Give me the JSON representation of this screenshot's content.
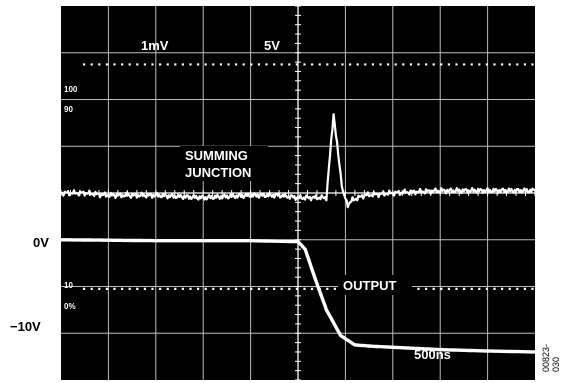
{
  "chart_data": {
    "type": "line",
    "title": "",
    "grid": true,
    "x_divisions": 10,
    "y_divisions": 8,
    "scale_labels": {
      "ch1": "1mV",
      "ch2": "5V",
      "time": "500ns"
    },
    "reference_labels": {
      "top_pct": "100",
      "upper": "90",
      "lower": "10",
      "bottom_pct": "0%"
    },
    "level_labels": {
      "zero": "0V",
      "minus_ten": "−10V"
    },
    "series": [
      {
        "name": "SUMMING\nJUNCTION",
        "name_lines": [
          "SUMMING",
          "JUNCTION"
        ],
        "x_div": [
          0,
          0.5,
          1,
          2,
          3,
          4,
          4.6,
          5.0,
          5.6,
          5.75,
          5.85,
          5.95,
          6.05,
          6.15,
          6.4,
          7,
          8,
          9,
          10
        ],
        "y_div": [
          4.0,
          4.0,
          3.95,
          3.95,
          3.9,
          3.95,
          3.95,
          3.9,
          3.9,
          5.7,
          4.8,
          4.0,
          3.75,
          3.85,
          3.95,
          4.0,
          4.05,
          4.05,
          4.05
        ]
      },
      {
        "name": "OUTPUT",
        "x_div": [
          0,
          1,
          2,
          3,
          4,
          5.0,
          5.15,
          5.35,
          5.6,
          5.9,
          6.2,
          6.6,
          7,
          8,
          9,
          10
        ],
        "y_div": [
          3.0,
          2.99,
          2.98,
          2.98,
          2.98,
          2.96,
          2.8,
          2.2,
          1.5,
          0.95,
          0.75,
          0.72,
          0.7,
          0.65,
          0.62,
          0.6
        ]
      }
    ]
  },
  "figure_id": "00823-030"
}
